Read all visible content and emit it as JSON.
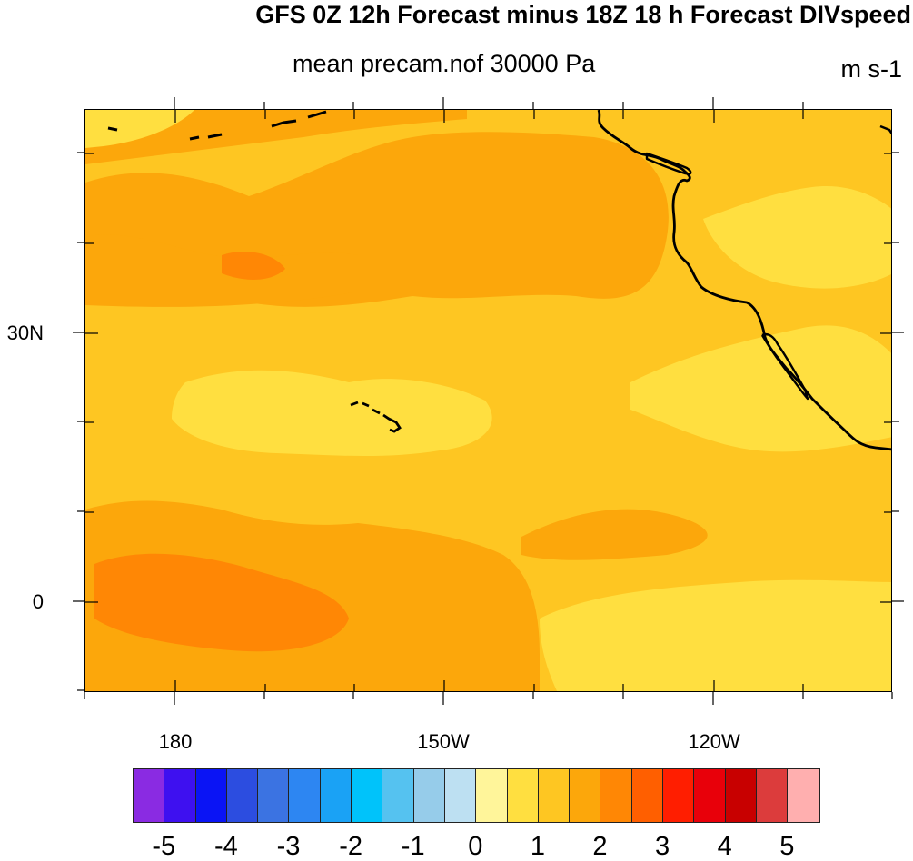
{
  "title": "GFS 0Z 12h Forecast minus 18Z 18 h Forecast DIVspeed",
  "subtitle": "mean precam.nof 30000 Pa",
  "units": "m s-1",
  "axes": {
    "lat_labels": [
      "30N",
      "0"
    ],
    "lon_labels": [
      "180",
      "150W",
      "120W"
    ]
  },
  "colorbar": {
    "colors": [
      "#8A2BE2",
      "#3E10F0",
      "#0A14F5",
      "#2C4DE0",
      "#3B73E2",
      "#2D86F2",
      "#1AA2F5",
      "#00C3FA",
      "#55C2F0",
      "#96CCEA",
      "#BDE0F2",
      "#FFF59A",
      "#FFDF40",
      "#FEC622",
      "#FCA70B",
      "#FF8705",
      "#FF5F00",
      "#FF1E00",
      "#E8000A",
      "#C80000",
      "#DC3C3C",
      "#FFAFAF"
    ],
    "labels": [
      "-5",
      "-4",
      "-3",
      "-2",
      "-1",
      "0",
      "1",
      "2",
      "3",
      "4",
      "5"
    ]
  },
  "map": {
    "background_color": "#FEC622",
    "light_color": "#FFDF40",
    "medium_color": "#FCA70B",
    "strong_color": "#FF8705",
    "coast_color": "#000000"
  }
}
